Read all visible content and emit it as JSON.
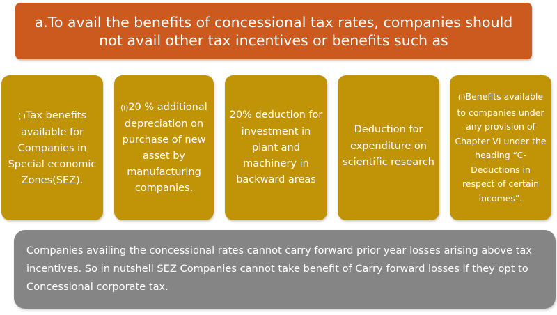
{
  "header": {
    "text": "a.To avail the benefits of  concessional tax rates, companies should not avail other tax incentives or benefits such as"
  },
  "items": [
    {
      "prefix": "(i)",
      "text": "Tax benefits available for Companies in Special economic Zones(SEZ)."
    },
    {
      "prefix": "(i)",
      "text": "20 % additional depreciation on purchase of new asset by manufacturing companies."
    },
    {
      "prefix": "",
      "text": "20% deduction for investment in plant and machinery in backward areas"
    },
    {
      "prefix": "",
      "text": "Deduction for expenditure on scientific research"
    },
    {
      "prefix": "(i)",
      "text": "Benefits available to companies under any provision of Chapter VI under the heading “C-Deductions in respect of certain incomes”."
    }
  ],
  "note": {
    "text": "Companies availing the concessional rates cannot carry forward prior year losses arising above tax incentives. So in nutshell SEZ Companies cannot take benefit of Carry forward losses if they opt to Concessional corporate tax."
  },
  "colors": {
    "header": "#cc5a1e",
    "cards": "#c19307",
    "note": "#858585"
  }
}
